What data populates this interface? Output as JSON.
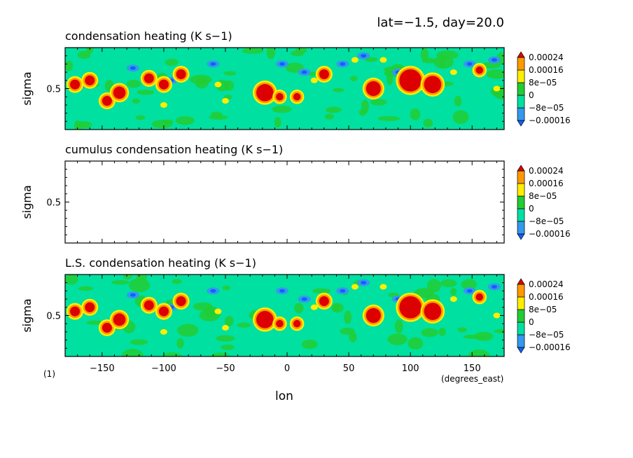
{
  "header": {
    "text": "lat=−1.5, day=20.0"
  },
  "footer": {
    "panel_index": "(1)",
    "x_units": "(degrees_east)",
    "x_label": "lon"
  },
  "colors": {
    "neg_dark": "#1060ff",
    "neg": "#3399ee",
    "mid_low": "#00e0a0",
    "mid_high": "#22cc33",
    "pos_low": "#ffee00",
    "pos_mid": "#ff9900",
    "pos_high": "#dd0000"
  },
  "chart_data": [
    {
      "type": "heatmap",
      "title": "condensation heating (K s−1)",
      "xlabel": "lon",
      "ylabel": "sigma",
      "x_ticks": [
        -150,
        -100,
        -50,
        0,
        50,
        100,
        150
      ],
      "x_tick_labels": [
        "−150",
        "−100",
        "−50",
        "0",
        "50",
        "100",
        "150"
      ],
      "xlim": [
        -180,
        176
      ],
      "y_ticks": [
        0.5
      ],
      "y_tick_labels": [
        "0.5"
      ],
      "ylim": [
        1.0,
        0.0
      ],
      "legend_labels": [
        "0.00024",
        "0.00016",
        "8e−05",
        "0",
        "−8e−05",
        "−0.00016"
      ],
      "levels": [
        -0.00016,
        -8e-05,
        0,
        8e-05,
        0.00016,
        0.00024
      ],
      "has_field": true,
      "x_visible": false
    },
    {
      "type": "heatmap",
      "title": "cumulus condensation heating (K s−1)",
      "xlabel": "lon",
      "ylabel": "sigma",
      "x_ticks": [
        -150,
        -100,
        -50,
        0,
        50,
        100,
        150
      ],
      "x_tick_labels": [
        "−150",
        "−100",
        "−50",
        "0",
        "50",
        "100",
        "150"
      ],
      "xlim": [
        -180,
        176
      ],
      "y_ticks": [
        0.5
      ],
      "y_tick_labels": [
        "0.5"
      ],
      "ylim": [
        1.0,
        0.0
      ],
      "legend_labels": [
        "0.00024",
        "0.00016",
        "8e−05",
        "0",
        "−8e−05",
        "−0.00016"
      ],
      "levels": [
        -0.00016,
        -8e-05,
        0,
        8e-05,
        0.00016,
        0.00024
      ],
      "has_field": false,
      "x_visible": false
    },
    {
      "type": "heatmap",
      "title": "L.S. condensation heating (K s−1)",
      "xlabel": "lon",
      "ylabel": "sigma",
      "x_ticks": [
        -150,
        -100,
        -50,
        0,
        50,
        100,
        150
      ],
      "x_tick_labels": [
        "−150",
        "−100",
        "−50",
        "0",
        "50",
        "100",
        "150"
      ],
      "xlim": [
        -180,
        176
      ],
      "y_ticks": [
        0.5
      ],
      "y_tick_labels": [
        "0.5"
      ],
      "ylim": [
        1.0,
        0.0
      ],
      "legend_labels": [
        "0.00024",
        "0.00016",
        "8e−05",
        "0",
        "−8e−05",
        "−0.00016"
      ],
      "levels": [
        -0.00016,
        -8e-05,
        0,
        8e-05,
        0.00016,
        0.00024
      ],
      "has_field": true,
      "x_visible": true
    }
  ]
}
